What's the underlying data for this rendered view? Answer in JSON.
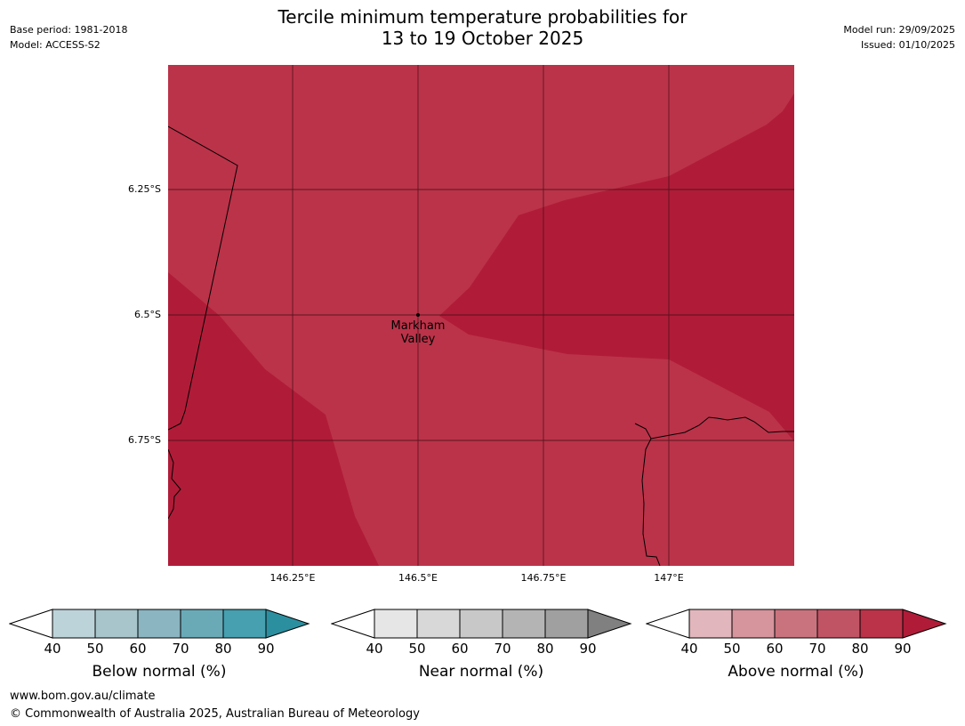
{
  "header": {
    "title_line1": "Tercile minimum temperature probabilities for",
    "title_line2": "13 to 19 October 2025",
    "base_period": "Base period: 1981-2018",
    "model": "Model: ACCESS-S2",
    "model_run": "Model run: 29/09/2025",
    "issued": "Issued: 01/10/2025"
  },
  "map": {
    "lat_labels": [
      "6.25°S",
      "6.5°S",
      "6.75°S"
    ],
    "lon_labels": [
      "146.25°E",
      "146.5°E",
      "146.75°E",
      "147°E"
    ],
    "place": {
      "line1": "Markham",
      "line2": "Valley"
    },
    "region_colors": {
      "above_80_90": "#bb3349",
      "above_90_plus": "#b01c38"
    }
  },
  "colorbars": [
    {
      "label": "Below normal (%)",
      "ticks": [
        "40",
        "50",
        "60",
        "70",
        "80",
        "90"
      ],
      "colors": [
        "#bdd3da",
        "#a7c5cb",
        "#8ab5c1",
        "#6aaab7",
        "#46a0b0",
        "#2c8fa0"
      ]
    },
    {
      "label": "Near normal (%)",
      "ticks": [
        "40",
        "50",
        "60",
        "70",
        "80",
        "90"
      ],
      "colors": [
        "#e6e6e6",
        "#d8d8d8",
        "#c8c8c8",
        "#b4b4b4",
        "#a0a0a0",
        "#808080"
      ]
    },
    {
      "label": "Above normal (%)",
      "ticks": [
        "40",
        "50",
        "60",
        "70",
        "80",
        "90"
      ],
      "colors": [
        "#e1b6bc",
        "#d6949c",
        "#c9737e",
        "#c05465",
        "#bb3349",
        "#b01c38"
      ]
    }
  ],
  "footer": {
    "url": "www.bom.gov.au/climate",
    "copyright": "© Commonwealth of Australia 2025, Australian Bureau of Meteorology"
  }
}
